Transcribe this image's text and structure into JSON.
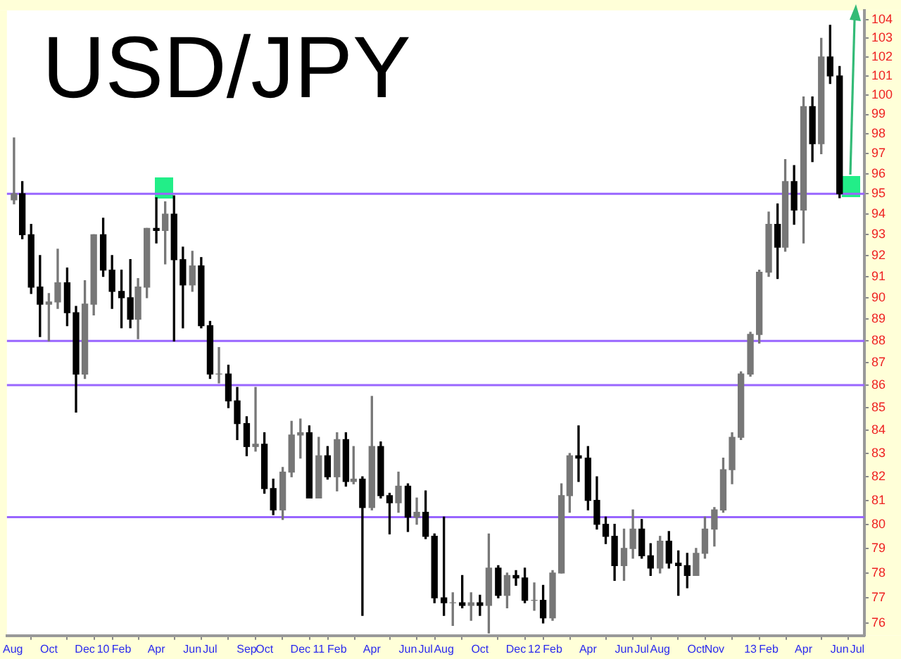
{
  "chart_data": {
    "type": "candlestick",
    "title": "USD/JPY",
    "log": true,
    "x": [
      "2009-08-03",
      "2009-08-17",
      "2009-09-01",
      "2009-09-16",
      "2009-10-01",
      "2009-10-16",
      "2009-11-01",
      "2009-11-16",
      "2009-12-01",
      "2009-12-16",
      "2010-01-01",
      "2010-01-16",
      "2010-02-01",
      "2010-02-16",
      "2010-03-01",
      "2010-03-16",
      "2010-04-01",
      "2010-04-16",
      "2010-05-01",
      "2010-05-16",
      "2010-06-01",
      "2010-06-16",
      "2010-07-01",
      "2010-07-16",
      "2010-08-01",
      "2010-08-16",
      "2010-09-01",
      "2010-09-16",
      "2010-10-01",
      "2010-10-16",
      "2010-11-01",
      "2010-11-16",
      "2010-12-01",
      "2010-12-16",
      "2011-01-01",
      "2011-01-16",
      "2011-02-01",
      "2011-02-16",
      "2011-03-01",
      "2011-03-16",
      "2011-04-01",
      "2011-04-16",
      "2011-05-01",
      "2011-05-16",
      "2011-06-01",
      "2011-06-16",
      "2011-07-01",
      "2011-07-16",
      "2011-08-01",
      "2011-08-16",
      "2011-09-01",
      "2011-09-16",
      "2011-10-01",
      "2011-10-16",
      "2011-11-01",
      "2011-11-16",
      "2011-12-01",
      "2011-12-16",
      "2012-01-01",
      "2012-01-16",
      "2012-02-01",
      "2012-02-16",
      "2012-03-01",
      "2012-03-16",
      "2012-04-01",
      "2012-04-16",
      "2012-05-01",
      "2012-05-16",
      "2012-06-01",
      "2012-06-16",
      "2012-07-01",
      "2012-07-16",
      "2012-08-01",
      "2012-08-16",
      "2012-09-01",
      "2012-09-16",
      "2012-10-01",
      "2012-10-16",
      "2012-11-01",
      "2012-11-16",
      "2012-12-01",
      "2012-12-16",
      "2013-01-01",
      "2013-01-16",
      "2013-02-01",
      "2013-02-16",
      "2013-03-01",
      "2013-03-16",
      "2013-04-01",
      "2013-04-16",
      "2013-05-01",
      "2013-05-16",
      "2013-06-01"
    ],
    "ohlc": [
      [
        94.7,
        97.8,
        94.5,
        95.0
      ],
      [
        95.0,
        95.6,
        92.8,
        93.0
      ],
      [
        93.0,
        93.5,
        90.2,
        90.5
      ],
      [
        90.5,
        92.0,
        88.2,
        89.7
      ],
      [
        89.7,
        90.2,
        88.0,
        89.8
      ],
      [
        89.8,
        92.3,
        89.5,
        90.7
      ],
      [
        90.7,
        91.4,
        88.7,
        89.3
      ],
      [
        89.3,
        89.6,
        84.8,
        86.5
      ],
      [
        86.5,
        90.8,
        86.3,
        89.7
      ],
      [
        89.7,
        93.0,
        89.2,
        93.0
      ],
      [
        93.0,
        93.8,
        91.0,
        91.3
      ],
      [
        91.3,
        92.0,
        89.5,
        90.3
      ],
      [
        90.3,
        91.3,
        88.6,
        90.0
      ],
      [
        90.0,
        91.8,
        88.6,
        89.0
      ],
      [
        89.0,
        90.9,
        88.1,
        90.5
      ],
      [
        90.5,
        93.3,
        90.0,
        93.3
      ],
      [
        93.3,
        94.8,
        92.6,
        93.2
      ],
      [
        93.2,
        94.6,
        91.6,
        94.0
      ],
      [
        94.0,
        94.9,
        88.0,
        91.8
      ],
      [
        91.8,
        92.4,
        88.6,
        90.6
      ],
      [
        90.6,
        92.2,
        90.3,
        91.5
      ],
      [
        91.5,
        91.9,
        88.6,
        88.7
      ],
      [
        88.7,
        88.9,
        86.3,
        86.5
      ],
      [
        86.5,
        87.7,
        86.1,
        86.5
      ],
      [
        86.5,
        86.9,
        85.0,
        85.3
      ],
      [
        85.3,
        85.9,
        83.6,
        84.3
      ],
      [
        84.3,
        84.6,
        82.9,
        83.3
      ],
      [
        83.3,
        85.9,
        83.1,
        83.4
      ],
      [
        83.4,
        83.9,
        81.3,
        81.5
      ],
      [
        81.5,
        81.9,
        80.4,
        80.6
      ],
      [
        80.6,
        82.4,
        80.2,
        82.2
      ],
      [
        82.2,
        84.4,
        82.0,
        83.8
      ],
      [
        83.8,
        84.5,
        82.8,
        83.9
      ],
      [
        83.9,
        84.2,
        81.1,
        81.1
      ],
      [
        81.1,
        83.7,
        81.1,
        82.9
      ],
      [
        82.9,
        83.3,
        81.9,
        82.0
      ],
      [
        82.0,
        83.9,
        81.4,
        83.6
      ],
      [
        83.6,
        83.9,
        81.6,
        81.8
      ],
      [
        81.8,
        83.3,
        81.7,
        81.9
      ],
      [
        81.9,
        82.0,
        76.3,
        80.7
      ],
      [
        80.7,
        85.5,
        80.6,
        83.3
      ],
      [
        83.3,
        83.5,
        81.1,
        81.2
      ],
      [
        81.2,
        81.3,
        79.6,
        80.9
      ],
      [
        80.9,
        82.2,
        80.5,
        81.6
      ],
      [
        81.6,
        81.7,
        79.7,
        80.3
      ],
      [
        80.3,
        81.1,
        80.0,
        80.5
      ],
      [
        80.5,
        81.4,
        79.4,
        79.5
      ],
      [
        79.5,
        79.6,
        76.8,
        77.0
      ],
      [
        77.0,
        80.3,
        76.3,
        76.8
      ],
      [
        76.8,
        77.2,
        75.9,
        76.8
      ],
      [
        76.8,
        77.9,
        76.6,
        76.7
      ],
      [
        76.7,
        77.2,
        76.1,
        76.8
      ],
      [
        76.8,
        77.1,
        76.3,
        76.7
      ],
      [
        76.7,
        79.6,
        75.6,
        78.2
      ],
      [
        78.2,
        78.3,
        77.0,
        77.1
      ],
      [
        77.1,
        78.0,
        76.6,
        77.9
      ],
      [
        77.9,
        78.1,
        77.5,
        77.8
      ],
      [
        77.8,
        78.2,
        76.8,
        76.9
      ],
      [
        76.9,
        77.6,
        76.5,
        76.9
      ],
      [
        76.9,
        77.5,
        76.0,
        76.2
      ],
      [
        76.2,
        78.1,
        76.1,
        78.0
      ],
      [
        78.0,
        81.7,
        78.0,
        81.2
      ],
      [
        81.2,
        83.0,
        80.5,
        82.9
      ],
      [
        82.9,
        84.2,
        81.8,
        82.8
      ],
      [
        82.8,
        83.3,
        80.6,
        81.0
      ],
      [
        81.0,
        82.0,
        79.8,
        80.0
      ],
      [
        80.0,
        80.3,
        79.2,
        79.5
      ],
      [
        79.5,
        80.0,
        77.7,
        78.3
      ],
      [
        78.3,
        79.8,
        77.7,
        79.0
      ],
      [
        79.0,
        80.6,
        78.6,
        79.8
      ],
      [
        79.8,
        80.2,
        78.6,
        78.7
      ],
      [
        78.7,
        79.2,
        77.9,
        78.2
      ],
      [
        78.2,
        79.5,
        78.0,
        79.3
      ],
      [
        79.3,
        79.7,
        78.2,
        78.4
      ],
      [
        78.4,
        78.9,
        77.1,
        78.3
      ],
      [
        78.3,
        78.8,
        77.4,
        77.9
      ],
      [
        77.9,
        79.0,
        77.9,
        78.8
      ],
      [
        78.8,
        80.3,
        78.6,
        79.8
      ],
      [
        79.8,
        80.7,
        79.1,
        80.6
      ],
      [
        80.6,
        82.8,
        80.5,
        82.3
      ],
      [
        82.3,
        83.9,
        81.7,
        83.7
      ],
      [
        83.7,
        86.6,
        83.6,
        86.5
      ],
      [
        86.5,
        88.4,
        86.4,
        88.3
      ],
      [
        88.3,
        91.3,
        87.9,
        91.2
      ],
      [
        91.2,
        94.1,
        91.0,
        93.5
      ],
      [
        93.5,
        94.5,
        90.9,
        92.4
      ],
      [
        92.4,
        96.7,
        92.2,
        95.6
      ],
      [
        95.6,
        96.4,
        93.5,
        94.2
      ],
      [
        94.2,
        99.9,
        92.6,
        99.4
      ],
      [
        99.4,
        99.9,
        96.6,
        97.5
      ],
      [
        97.5,
        103.0,
        97.0,
        102.0
      ],
      [
        102.0,
        103.7,
        100.6,
        101.0
      ],
      [
        101.0,
        101.5,
        94.8,
        95.0
      ]
    ],
    "xlim": [
      "2009-07-22",
      "2013-07-13"
    ],
    "xticks": [
      {
        "value": "2009-08-01",
        "label": "Aug"
      },
      {
        "value": "2009-10-01",
        "label": "Oct"
      },
      {
        "value": "2009-12-01",
        "label": "Dec"
      },
      {
        "value": "2010-01-01",
        "label": "10"
      },
      {
        "value": "2010-02-01",
        "label": "Feb"
      },
      {
        "value": "2010-04-01",
        "label": "Apr"
      },
      {
        "value": "2010-06-01",
        "label": "Jun"
      },
      {
        "value": "2010-07-01",
        "label": "Jul"
      },
      {
        "value": "2010-09-01",
        "label": "Sep"
      },
      {
        "value": "2010-10-01",
        "label": "Oct"
      },
      {
        "value": "2010-12-01",
        "label": "Dec"
      },
      {
        "value": "2011-01-01",
        "label": "11"
      },
      {
        "value": "2011-02-01",
        "label": "Feb"
      },
      {
        "value": "2011-04-01",
        "label": "Apr"
      },
      {
        "value": "2011-06-01",
        "label": "Jun"
      },
      {
        "value": "2011-07-01",
        "label": "Jul"
      },
      {
        "value": "2011-08-01",
        "label": "Aug"
      },
      {
        "value": "2011-10-01",
        "label": "Oct"
      },
      {
        "value": "2011-12-01",
        "label": "Dec"
      },
      {
        "value": "2012-01-01",
        "label": "12"
      },
      {
        "value": "2012-02-01",
        "label": "Feb"
      },
      {
        "value": "2012-04-01",
        "label": "Apr"
      },
      {
        "value": "2012-06-01",
        "label": "Jun"
      },
      {
        "value": "2012-07-01",
        "label": "Jul"
      },
      {
        "value": "2012-08-01",
        "label": "Aug"
      },
      {
        "value": "2012-10-01",
        "label": "Oct"
      },
      {
        "value": "2012-11-01",
        "label": "Nov"
      },
      {
        "value": "2013-01-01",
        "label": "13"
      },
      {
        "value": "2013-02-01",
        "label": "Feb"
      },
      {
        "value": "2013-04-01",
        "label": "Apr"
      },
      {
        "value": "2013-06-01",
        "label": "Jun"
      },
      {
        "value": "2013-07-01",
        "label": "Jul"
      }
    ],
    "ylim": [
      75.5,
      104.5
    ],
    "yticks": [
      76,
      77,
      78,
      79,
      80,
      81,
      82,
      83,
      84,
      85,
      86,
      87,
      88,
      89,
      90,
      91,
      92,
      93,
      94,
      95,
      96,
      97,
      98,
      99,
      100,
      101,
      102,
      103,
      104
    ],
    "ref_lines": [
      {
        "axis": "y",
        "value": 95,
        "color": "#9966ff"
      },
      {
        "axis": "y",
        "value": 88,
        "color": "#9966ff"
      },
      {
        "axis": "y",
        "value": 86,
        "color": "#9966ff"
      },
      {
        "axis": "y",
        "value": 80.3,
        "color": "#9966ff"
      }
    ]
  }
}
